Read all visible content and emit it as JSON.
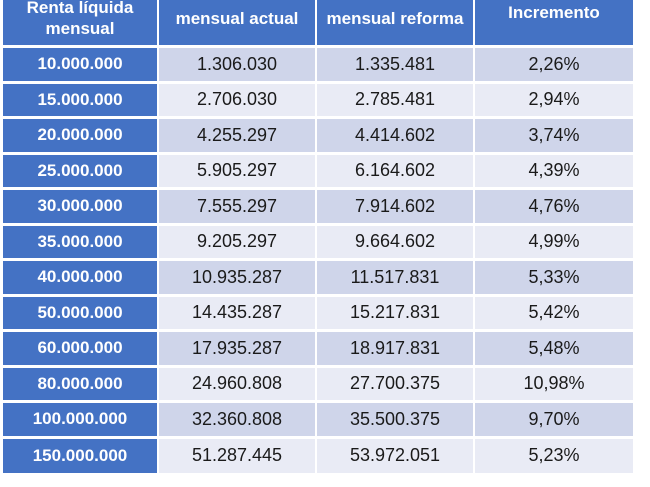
{
  "headers": [
    "Renta líquida mensual",
    "mensual actual",
    "mensual reforma",
    "Incremento"
  ],
  "rows": [
    [
      "10.000.000",
      "1.306.030",
      "1.335.481",
      "2,26%"
    ],
    [
      "15.000.000",
      "2.706.030",
      "2.785.481",
      "2,94%"
    ],
    [
      "20.000.000",
      "4.255.297",
      "4.414.602",
      "3,74%"
    ],
    [
      "25.000.000",
      "5.905.297",
      "6.164.602",
      "4,39%"
    ],
    [
      "30.000.000",
      "7.555.297",
      "7.914.602",
      "4,76%"
    ],
    [
      "35.000.000",
      "9.205.297",
      "9.664.602",
      "4,99%"
    ],
    [
      "40.000.000",
      "10.935.287",
      "11.517.831",
      "5,33%"
    ],
    [
      "50.000.000",
      "14.435.287",
      "15.217.831",
      "5,42%"
    ],
    [
      "60.000.000",
      "17.935.287",
      "18.917.831",
      "5,48%"
    ],
    [
      "80.000.000",
      "24.960.808",
      "27.700.375",
      "10,98%"
    ],
    [
      "100.000.000",
      "32.360.808",
      "35.500.375",
      "9,70%"
    ],
    [
      "150.000.000",
      "51.287.445",
      "53.972.051",
      "5,23%"
    ]
  ]
}
